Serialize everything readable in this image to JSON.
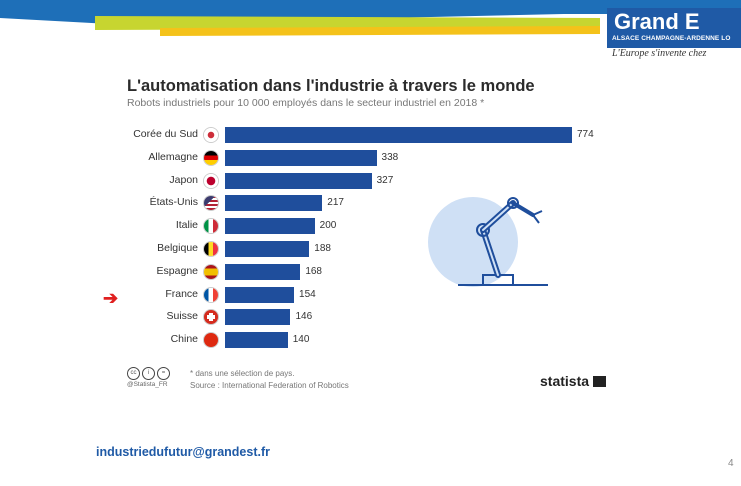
{
  "header": {
    "logo_main": "Grand E",
    "logo_sub": "ALSACE CHAMPAGNE-ARDENNE LO",
    "logo_tagline": "L'Europe s'invente chez"
  },
  "chart_data": {
    "type": "bar",
    "orientation": "horizontal",
    "title": "L'automatisation dans l'industrie à travers le monde",
    "subtitle": "Robots industriels pour 10 000 employés dans le secteur industriel en 2018 *",
    "categories": [
      "Corée du Sud",
      "Allemagne",
      "Japon",
      "États-Unis",
      "Italie",
      "Belgique",
      "Espagne",
      "France",
      "Suisse",
      "Chine"
    ],
    "values": [
      774,
      338,
      327,
      217,
      200,
      188,
      168,
      154,
      146,
      140
    ],
    "bar_color": "#1f4e9c",
    "highlighted_category": "France",
    "grid": false
  },
  "footer": {
    "cc_icons": [
      "cc",
      "i",
      "="
    ],
    "handle": "@Statista_FR",
    "note": "* dans une sélection de pays.",
    "source": "Source : International Federation of Robotics",
    "brand": "statista"
  },
  "contact": {
    "email": "industriedufutur@grandest.fr"
  },
  "page": {
    "number": "4"
  }
}
